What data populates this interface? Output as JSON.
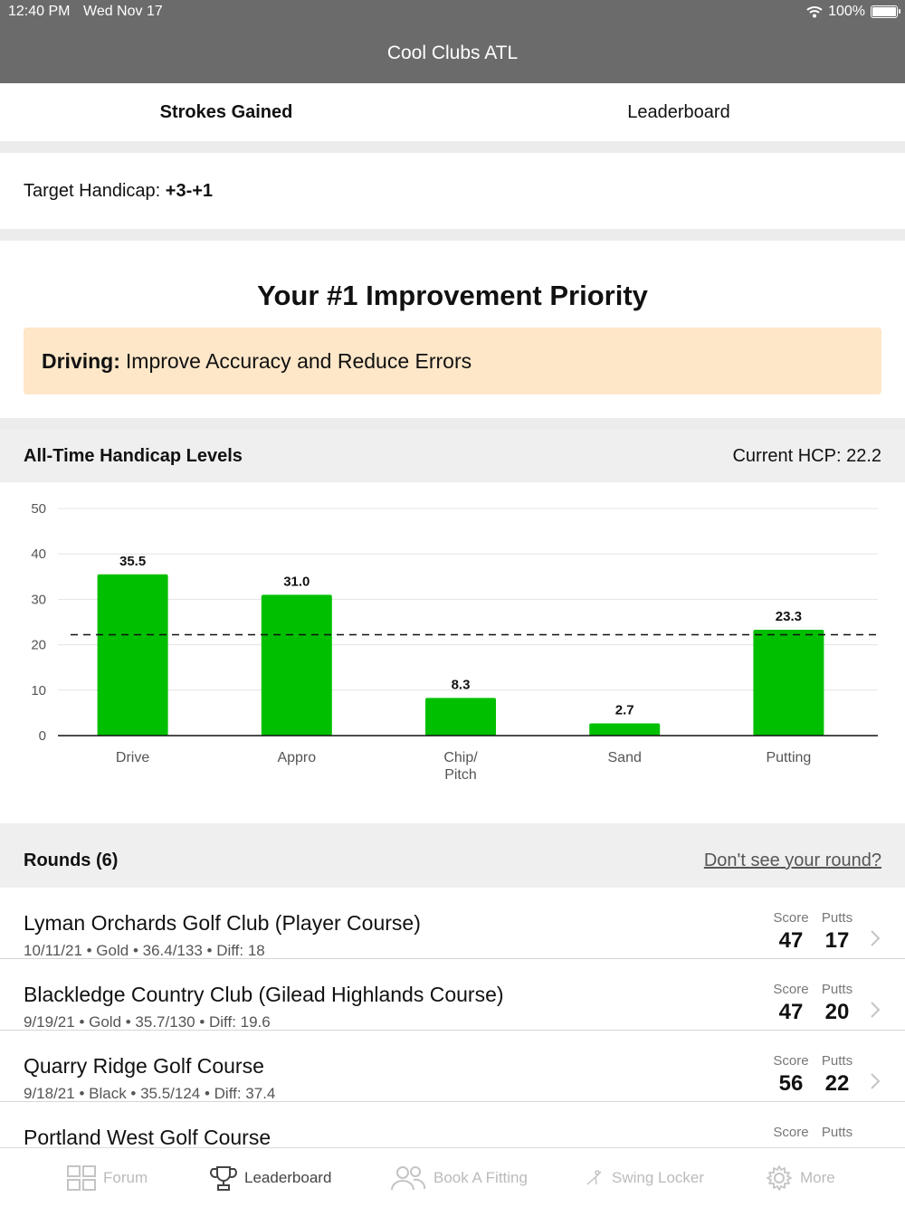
{
  "status_bar": {
    "time": "12:40 PM",
    "date": "Wed Nov 17",
    "battery": "100%"
  },
  "nav": {
    "title": "Cool Clubs ATL"
  },
  "tabs": [
    {
      "label": "Strokes Gained",
      "active": true
    },
    {
      "label": "Leaderboard",
      "active": false
    }
  ],
  "target": {
    "label": "Target Handicap:",
    "value": "+3-+1"
  },
  "priority": {
    "title": "Your #1 Improvement Priority",
    "category": "Driving:",
    "text": "Improve Accuracy and Reduce Errors",
    "bg_color": "#fde7c8"
  },
  "handicap": {
    "title": "All-Time Handicap Levels",
    "current": "Current HCP: 22.2"
  },
  "chart_data": {
    "type": "bar",
    "categories": [
      "Drive",
      "Appro",
      "Chip/\nPitch",
      "Sand",
      "Putting"
    ],
    "values": [
      35.5,
      31.0,
      8.3,
      2.7,
      23.3
    ],
    "value_labels": [
      "35.5",
      "31.0",
      "8.3",
      "2.7",
      "23.3"
    ],
    "ylim": [
      0,
      50
    ],
    "yticks": [
      "0",
      "10",
      "20",
      "30",
      "40",
      "50"
    ],
    "reference_line": 22.2,
    "grid": true,
    "bar_color": "#00bf00",
    "title": "",
    "xlabel": "",
    "ylabel": ""
  },
  "rounds": {
    "title": "Rounds (6)",
    "missing_link": "Don't see your round?",
    "score_label": "Score",
    "putts_label": "Putts",
    "items": [
      {
        "course": "Lyman Orchards Golf Club (Player Course)",
        "meta": "10/11/21 • Gold • 36.4/133 • Diff: 18",
        "score": "47",
        "putts": "17"
      },
      {
        "course": "Blackledge Country Club (Gilead Highlands Course)",
        "meta": "9/19/21 • Gold • 35.7/130 • Diff: 19.6",
        "score": "47",
        "putts": "20"
      },
      {
        "course": "Quarry Ridge Golf Course",
        "meta": "9/18/21 • Black • 35.5/124 • Diff: 37.4",
        "score": "56",
        "putts": "22"
      },
      {
        "course": "Portland West Golf Course",
        "meta": "",
        "score": "",
        "putts": ""
      }
    ]
  },
  "bottom_tabs": [
    {
      "label": "Forum",
      "icon": "grid-icon",
      "active": false
    },
    {
      "label": "Leaderboard",
      "icon": "trophy-icon",
      "active": true
    },
    {
      "label": "Book A Fitting",
      "icon": "people-icon",
      "active": false
    },
    {
      "label": "Swing Locker",
      "icon": "golfer-icon",
      "active": false
    },
    {
      "label": "More",
      "icon": "gear-icon",
      "active": false
    }
  ]
}
